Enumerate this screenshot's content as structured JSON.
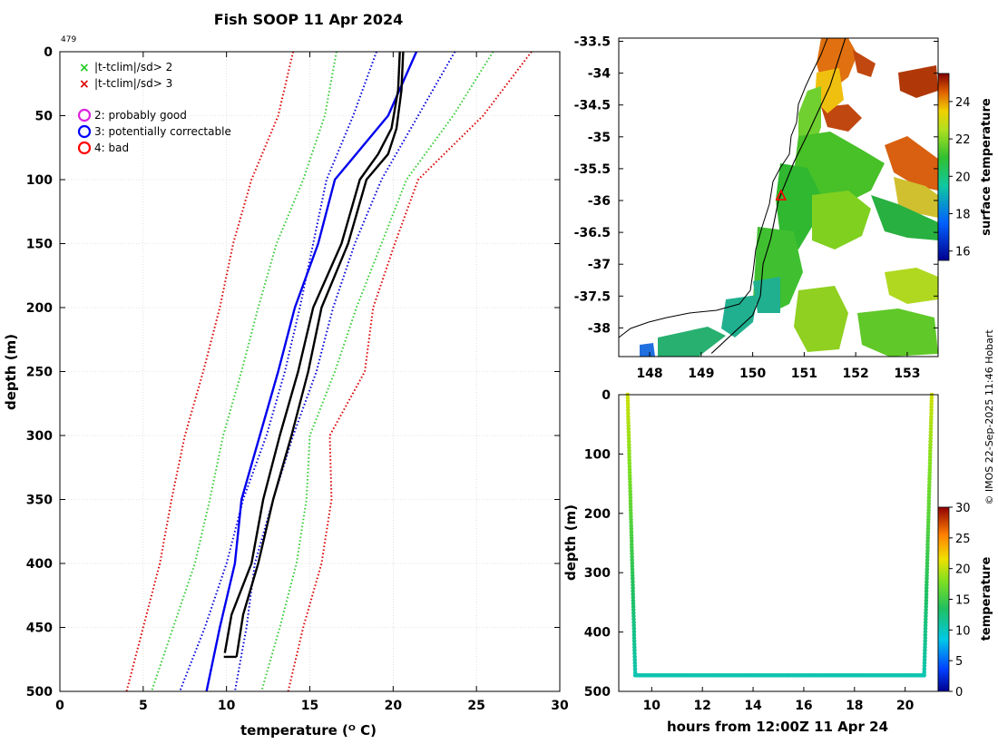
{
  "title": "Fish SOOP 11 Apr 2024",
  "profile_id": "479",
  "credit": "© IMOS 22-Sep-2025 11:46 Hobart",
  "legend": {
    "markers": [
      {
        "label": "|t-tclim|/sd> 2",
        "symbol": "x",
        "color": "#22cc22"
      },
      {
        "label": "|t-tclim|/sd> 3",
        "symbol": "x",
        "color": "#dd0000"
      }
    ],
    "flags": [
      {
        "label": "2: probably good",
        "color": "#dd22dd"
      },
      {
        "label": "3: potentially correctable",
        "color": "#0000ff"
      },
      {
        "label": "4: bad",
        "color": "#ff0000"
      }
    ]
  },
  "colors": {
    "profile": "#000000",
    "climatology_mean": "#0000ee",
    "sd1": "#0000dd",
    "sd2": "#33cc33",
    "sd3": "#dd0000",
    "coast": "#000000",
    "grid": "#cccccc"
  },
  "chart_data": [
    {
      "id": "profile",
      "type": "line",
      "title": "Fish SOOP 11 Apr 2024",
      "xlabel": "temperature",
      "xlabel_units": "(ᴼ C)",
      "ylabel": "depth (m)",
      "xlim": [
        0,
        30
      ],
      "ylim": [
        0,
        500
      ],
      "y_reversed": true,
      "grid": true,
      "xticks": [
        0,
        5,
        10,
        15,
        20,
        25,
        30
      ],
      "yticks": [
        0,
        50,
        100,
        150,
        200,
        250,
        300,
        350,
        400,
        450,
        500
      ],
      "depth": [
        0,
        50,
        100,
        150,
        200,
        250,
        300,
        350,
        400,
        450,
        500
      ],
      "series": [
        {
          "name": "mean-3sd",
          "style": "dotted",
          "color": "#dd0000",
          "values": [
            14.0,
            13.1,
            11.5,
            10.4,
            9.6,
            8.6,
            7.5,
            6.7,
            6.0,
            5.0,
            4.0
          ]
        },
        {
          "name": "mean-2sd",
          "style": "dotted",
          "color": "#33cc33",
          "values": [
            16.6,
            15.9,
            14.6,
            13.0,
            11.9,
            10.9,
            9.8,
            9.0,
            8.1,
            6.8,
            5.5
          ]
        },
        {
          "name": "mean-1sd",
          "style": "dotted",
          "color": "#0000dd",
          "values": [
            19.0,
            17.6,
            16.0,
            15.2,
            14.4,
            13.5,
            12.4,
            11.0,
            10.0,
            8.7,
            7.2
          ]
        },
        {
          "name": "climatology mean",
          "style": "solid",
          "color": "#0000ee",
          "values": [
            21.4,
            19.7,
            16.5,
            15.5,
            14.1,
            13.1,
            12.0,
            10.9,
            10.5,
            9.6,
            8.8
          ]
        },
        {
          "name": "mean+1sd",
          "style": "dotted",
          "color": "#0000dd",
          "values": [
            23.7,
            21.5,
            19.3,
            17.7,
            16.4,
            15.4,
            14.0,
            12.8,
            11.7,
            11.2,
            10.5
          ]
        },
        {
          "name": "mean+2sd",
          "style": "dotted",
          "color": "#33cc33",
          "values": [
            26.0,
            23.6,
            20.8,
            19.3,
            17.8,
            16.5,
            15.0,
            14.8,
            14.2,
            13.2,
            12.1
          ]
        },
        {
          "name": "mean+3sd",
          "style": "dotted",
          "color": "#dd0000",
          "values": [
            28.3,
            25.4,
            21.5,
            20.1,
            18.8,
            18.3,
            16.2,
            16.3,
            15.7,
            14.6,
            13.7
          ]
        },
        {
          "name": "profile (down)",
          "style": "solid",
          "color": "#000000",
          "depth": [
            0,
            30,
            60,
            80,
            100,
            150,
            200,
            250,
            300,
            350,
            400,
            440,
            470
          ],
          "values": [
            20.4,
            20.3,
            19.9,
            19.1,
            18.0,
            16.9,
            15.2,
            14.3,
            13.2,
            12.2,
            11.5,
            10.3,
            9.9
          ]
        },
        {
          "name": "profile (up)",
          "style": "solid",
          "color": "#000000",
          "depth": [
            0,
            30,
            60,
            80,
            100,
            150,
            200,
            250,
            300,
            350,
            400,
            440,
            473
          ],
          "values": [
            20.6,
            20.5,
            20.2,
            19.7,
            18.4,
            17.3,
            15.7,
            14.9,
            13.9,
            12.8,
            11.9,
            11.0,
            10.6
          ]
        }
      ]
    },
    {
      "id": "sst_map",
      "type": "heatmap",
      "xlim": [
        147.4,
        153.6
      ],
      "ylim": [
        -38.45,
        -33.45
      ],
      "xticks": [
        148,
        149,
        150,
        151,
        152,
        153
      ],
      "yticks": [
        -33.5,
        -34,
        -34.5,
        -35,
        -35.5,
        -36,
        -36.5,
        -37,
        -37.5,
        -38
      ],
      "colorbar_label": "surface temperature",
      "colorbar_range": [
        15.5,
        25.5
      ],
      "colorbar_ticks": [
        16,
        18,
        20,
        22,
        24
      ],
      "track": {
        "lon": [
          151.8,
          151.5,
          151.1,
          150.8,
          150.5,
          150.35,
          150.2,
          150.15,
          150.0,
          149.6,
          149.2
        ],
        "lat": [
          -33.45,
          -34.2,
          -34.9,
          -35.4,
          -36.0,
          -36.6,
          -37.0,
          -37.5,
          -37.8,
          -38.1,
          -38.4
        ]
      },
      "profile_marker": {
        "lon": 150.55,
        "lat": -35.93
      }
    },
    {
      "id": "depth_time",
      "type": "scatter",
      "xlabel": "hours from 12:00Z 11 Apr 24",
      "ylabel": "depth (m)",
      "xlim": [
        8.7,
        21.3
      ],
      "ylim": [
        0,
        500
      ],
      "y_reversed": true,
      "xticks": [
        10,
        12,
        14,
        16,
        18,
        20
      ],
      "yticks": [
        0,
        100,
        200,
        300,
        400,
        500
      ],
      "colorbar_label": "temperature",
      "colorbar_range": [
        0,
        30
      ],
      "colorbar_ticks": [
        0,
        5,
        10,
        15,
        20,
        25,
        30
      ],
      "descent": {
        "hours": [
          9.05,
          9.35
        ],
        "depth": [
          0,
          473
        ],
        "temperature": [
          20.5,
          10.5
        ]
      },
      "bottom": {
        "hours": [
          9.35,
          20.75
        ],
        "depth": 473,
        "temperature": 10.5
      },
      "ascent": {
        "hours": [
          20.75,
          21.05
        ],
        "depth": [
          473,
          0
        ],
        "temperature": [
          10.5,
          20.5
        ]
      }
    }
  ]
}
